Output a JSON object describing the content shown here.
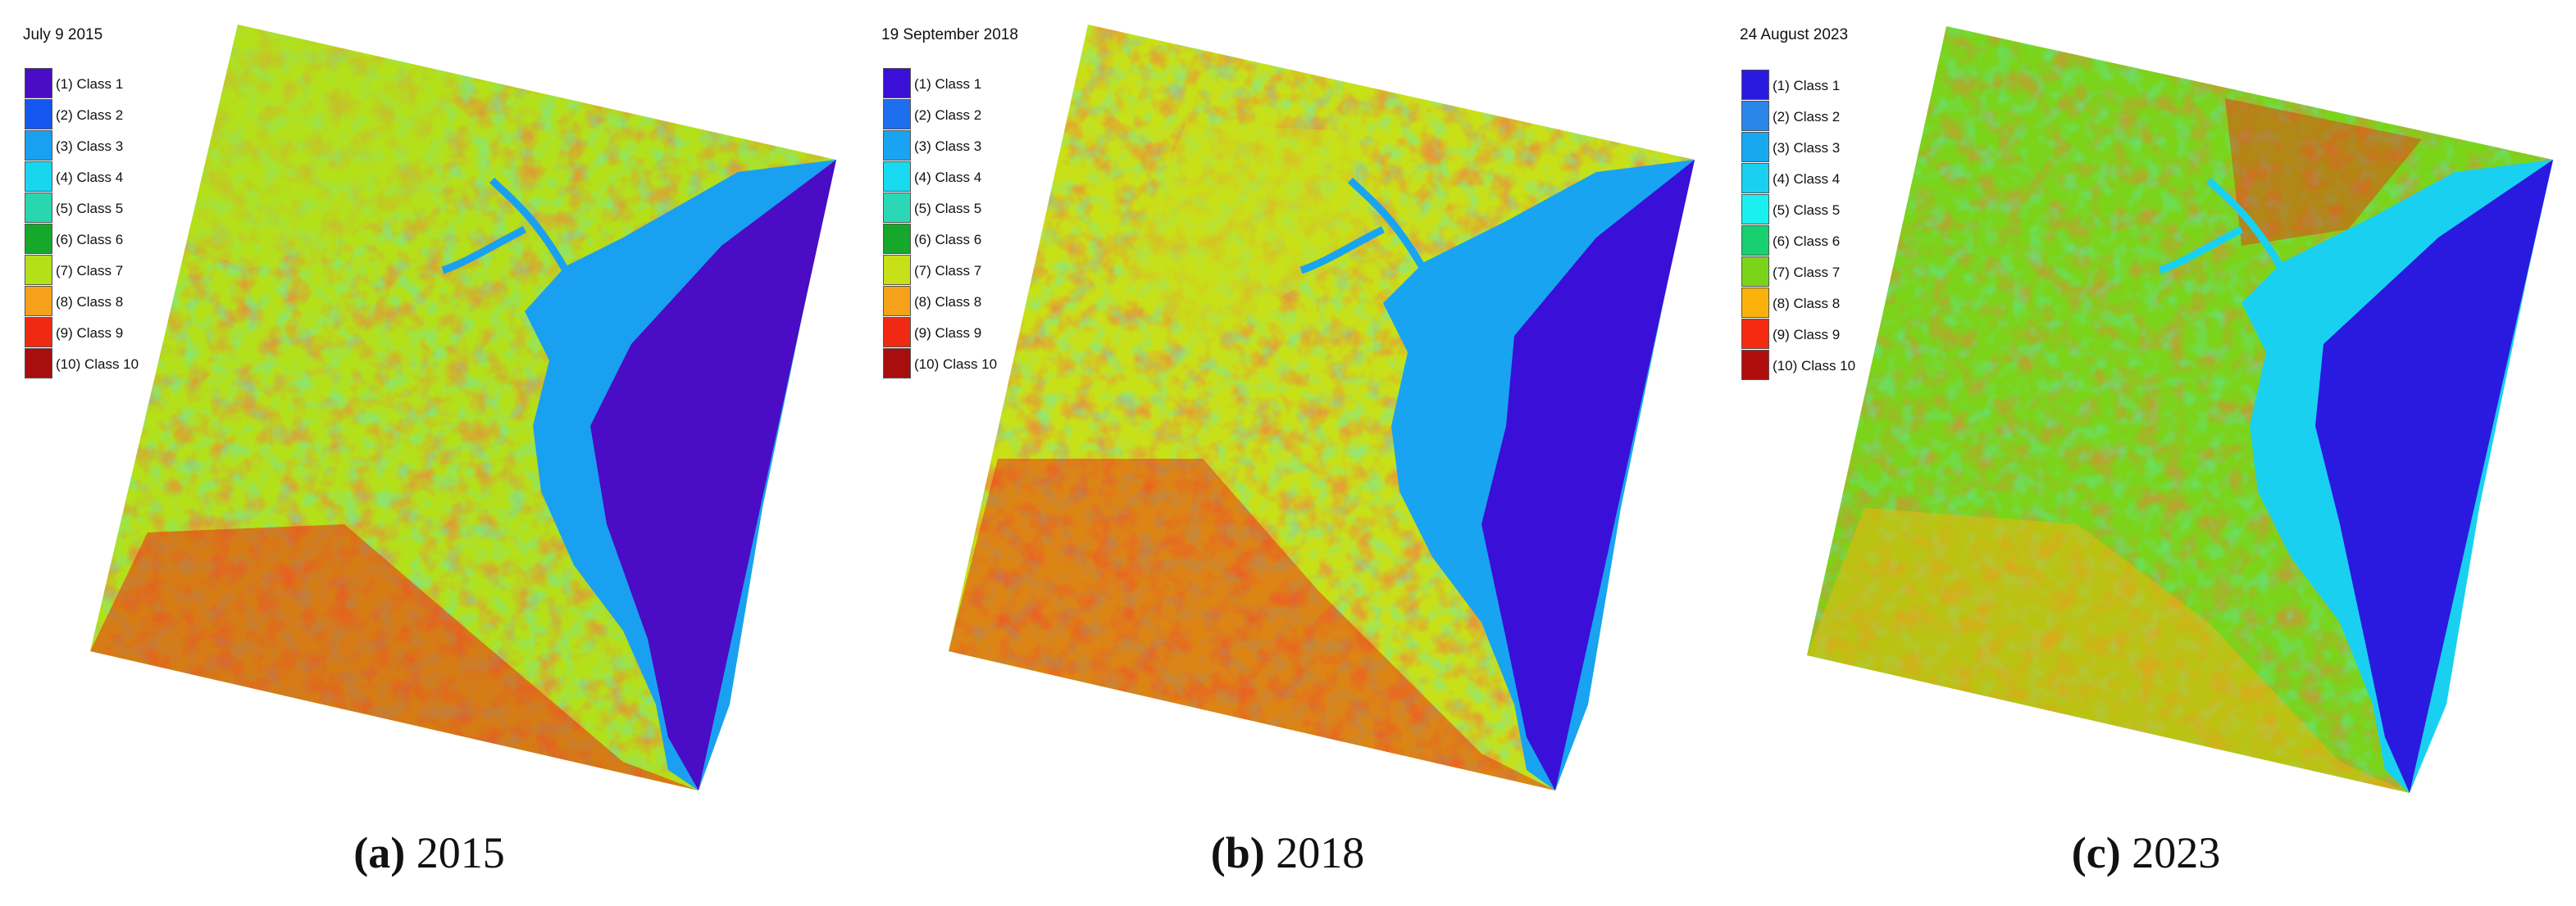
{
  "legend_labels": [
    "(1) Class 1",
    "(2) Class 2",
    "(3) Class 3",
    "(4) Class 4",
    "(5) Class 5",
    "(6) Class 6",
    "(7) Class 7",
    "(8) Class 8",
    "(9) Class 9",
    "(10) Class 10"
  ],
  "panels": [
    {
      "date": "July 9 2015",
      "caption_letter": "(a)",
      "caption_year": " 2015",
      "colors": [
        "#4a0cc4",
        "#1456f0",
        "#1aa0f0",
        "#18d6f0",
        "#28d6b0",
        "#16a82a",
        "#b4e01a",
        "#f5a21a",
        "#f02a12",
        "#a80e0e"
      ]
    },
    {
      "date": "19 September 2018",
      "caption_letter": "(b)",
      "caption_year": " 2018",
      "colors": [
        "#3a0fd8",
        "#1e6ef0",
        "#18a4f0",
        "#18daf0",
        "#2ad8b8",
        "#16a82a",
        "#c8e018",
        "#f5a21a",
        "#f02a12",
        "#a80e0e"
      ]
    },
    {
      "date": "24 August 2023",
      "caption_letter": "(c)",
      "caption_year": " 2023",
      "colors": [
        "#2a1ae0",
        "#2a86e8",
        "#18a8f0",
        "#1ad0f0",
        "#1af0f0",
        "#18d070",
        "#7cd41a",
        "#fab20a",
        "#f52a10",
        "#b00e0e"
      ]
    }
  ]
}
